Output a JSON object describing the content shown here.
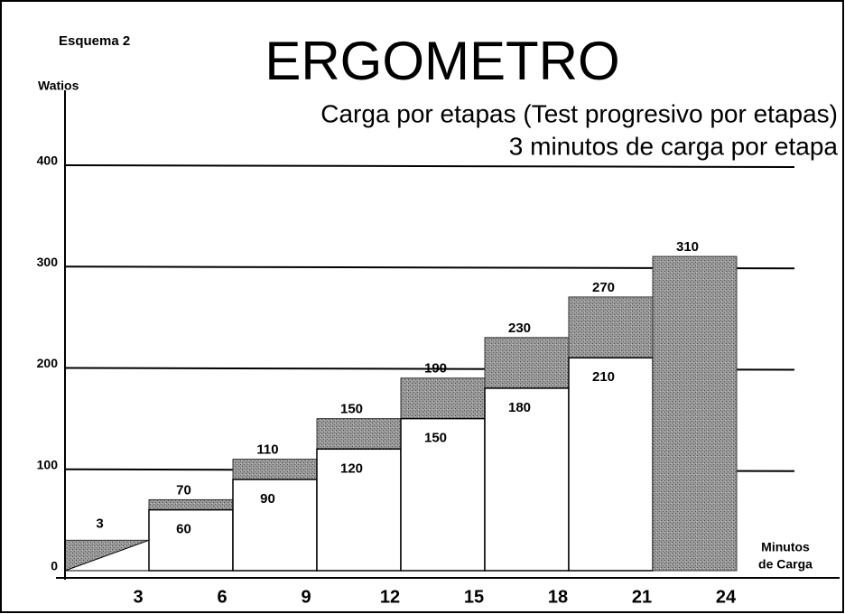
{
  "chart_data": {
    "type": "step-bar",
    "label": "Esquema 2",
    "title": "ERGOMETRO",
    "subtitle": [
      "Carga por etapas (Test progresivo por etapas)",
      "3 minutos de carga por etapa"
    ],
    "y_label": "Watios",
    "x_label": [
      "Minutos",
      "de Carga"
    ],
    "x": [
      0,
      3,
      6,
      9,
      12,
      15,
      18,
      21
    ],
    "upper": [
      30,
      70,
      110,
      150,
      190,
      230,
      270,
      310
    ],
    "lower": [
      null,
      60,
      90,
      120,
      150,
      180,
      210,
      null
    ],
    "first_stage_label": "3",
    "xticks": [
      3,
      6,
      9,
      12,
      15,
      18,
      21,
      24
    ],
    "xlim": [
      0,
      24
    ],
    "ylim": [
      0,
      400
    ],
    "yticks": [
      0,
      100,
      200,
      300,
      400
    ],
    "grid": true,
    "color": "#8c8c8c"
  }
}
